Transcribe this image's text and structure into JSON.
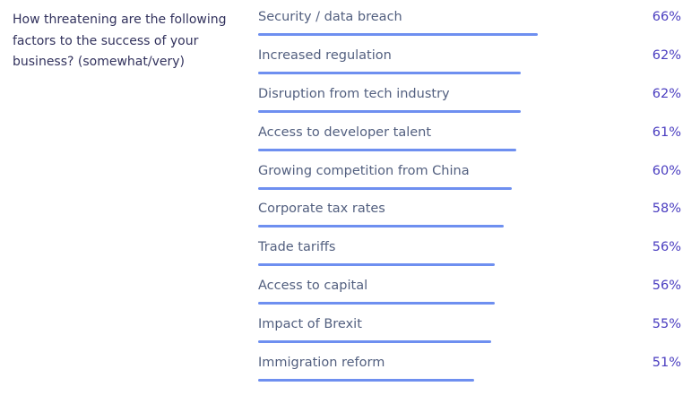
{
  "question": "How threatening are the following factors to the success of your business? (somewhat/very)",
  "colors": {
    "bar": "#6e8ff0",
    "value_text": "#4a3dc0",
    "label_text": "#525f7f",
    "question_text": "#32325d"
  },
  "chart_data": {
    "type": "bar",
    "orientation": "horizontal",
    "categories": [
      "Security / data breach",
      "Increased regulation",
      "Disruption from tech industry",
      "Access to developer talent",
      "Growing competition from China",
      "Corporate tax rates",
      "Trade tariffs",
      "Access to capital",
      "Impact of Brexit",
      "Immigration reform"
    ],
    "values": [
      66,
      62,
      62,
      61,
      60,
      58,
      56,
      56,
      55,
      51
    ],
    "value_labels": [
      "66%",
      "62%",
      "62%",
      "61%",
      "60%",
      "58%",
      "56%",
      "56%",
      "55%",
      "51%"
    ],
    "xlim": [
      0,
      100
    ],
    "grid": false,
    "legend": "none"
  }
}
